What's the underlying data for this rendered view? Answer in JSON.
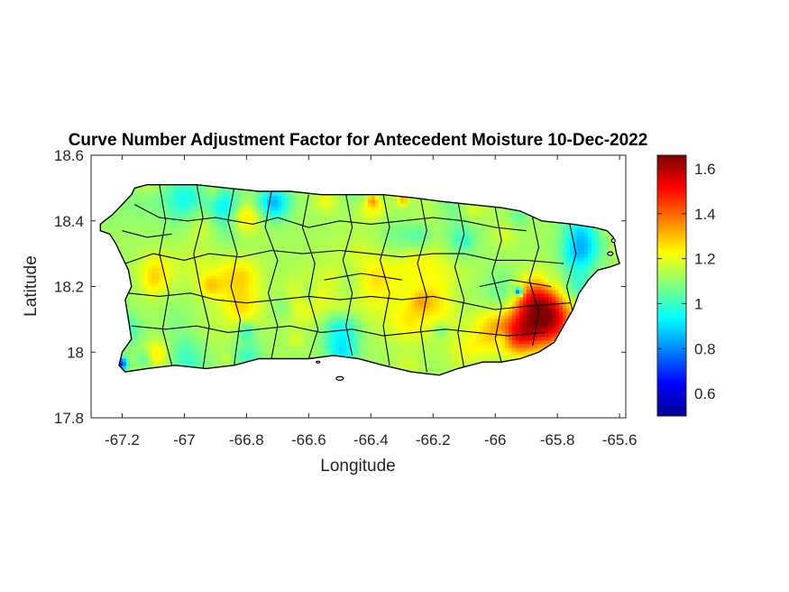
{
  "chart_data": {
    "type": "heatmap",
    "title": "Curve Number Adjustment Factor for Antecedent Moisture 10-Dec-2022",
    "xlabel": "Longitude",
    "ylabel": "Latitude",
    "xlim": [
      -67.3,
      -65.58
    ],
    "ylim": [
      17.8,
      18.6
    ],
    "x_ticks": [
      -67.2,
      -67,
      -66.8,
      -66.6,
      -66.4,
      -66.2,
      -66,
      -65.8,
      -65.6
    ],
    "x_tick_labels": [
      "-67.2",
      "-67",
      "-66.8",
      "-66.6",
      "-66.4",
      "-66.2",
      "-66",
      "-65.8",
      "-65.6"
    ],
    "y_ticks": [
      17.8,
      18,
      18.2,
      18.4,
      18.6
    ],
    "y_tick_labels": [
      "17.8",
      "18",
      "18.2",
      "18.4",
      "18.6"
    ],
    "colorbar": {
      "colormap": "jet",
      "range": [
        0.5,
        1.66
      ],
      "ticks": [
        0.6,
        0.8,
        1,
        1.2,
        1.4,
        1.6
      ],
      "tick_labels": [
        "0.6",
        "0.8",
        "1",
        "1.2",
        "1.4",
        "1.6"
      ]
    },
    "grid": false
  },
  "colors": {
    "axis": "#262626",
    "boundary": "#000000"
  }
}
